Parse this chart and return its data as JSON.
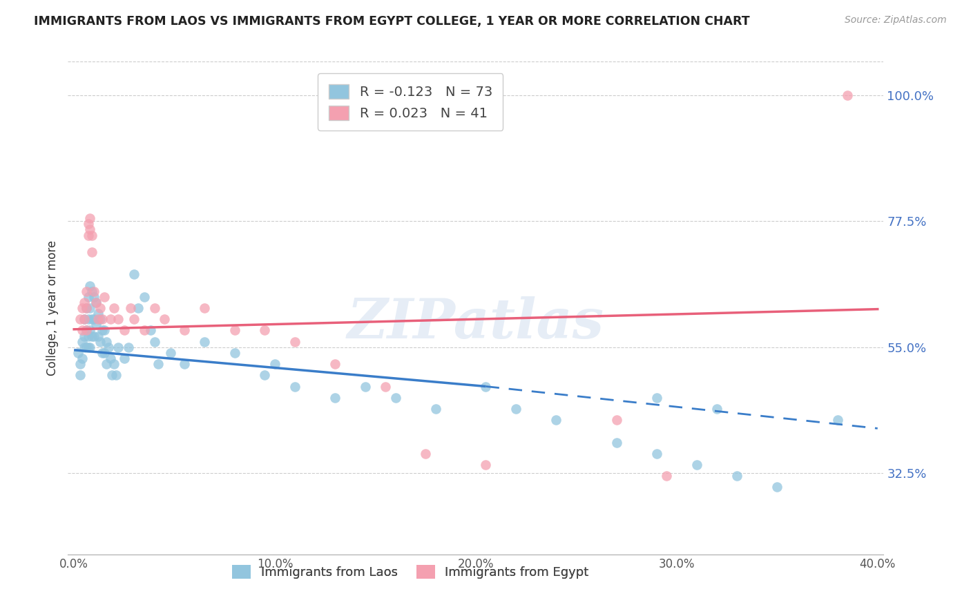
{
  "title": "IMMIGRANTS FROM LAOS VS IMMIGRANTS FROM EGYPT COLLEGE, 1 YEAR OR MORE CORRELATION CHART",
  "source": "Source: ZipAtlas.com",
  "xlabel_laos": "Immigrants from Laos",
  "xlabel_egypt": "Immigrants from Egypt",
  "ylabel": "College, 1 year or more",
  "xlim": [
    -0.003,
    0.403
  ],
  "ylim": [
    0.18,
    1.06
  ],
  "yticks": [
    0.325,
    0.55,
    0.775,
    1.0
  ],
  "ytick_labels": [
    "32.5%",
    "55.0%",
    "77.5%",
    "100.0%"
  ],
  "xticks": [
    0.0,
    0.1,
    0.2,
    0.3,
    0.4
  ],
  "xtick_labels": [
    "0.0%",
    "10.0%",
    "20.0%",
    "30.0%",
    "40.0%"
  ],
  "laos_R": -0.123,
  "laos_N": 73,
  "egypt_R": 0.023,
  "egypt_N": 41,
  "color_laos": "#92C5DE",
  "color_egypt": "#F4A0B0",
  "color_laos_line": "#3A7DC9",
  "color_egypt_line": "#E8607A",
  "color_axis_right": "#4472C4",
  "watermark": "ZIPatlas",
  "blue_line_x0": 0.0,
  "blue_line_y0": 0.545,
  "blue_line_x1": 0.205,
  "blue_line_y1": 0.48,
  "blue_line_x2": 0.4,
  "blue_line_y2": 0.405,
  "pink_line_x0": 0.0,
  "pink_line_y0": 0.582,
  "pink_line_x1": 0.4,
  "pink_line_y1": 0.618,
  "laos_x": [
    0.002,
    0.003,
    0.003,
    0.004,
    0.004,
    0.005,
    0.005,
    0.005,
    0.006,
    0.006,
    0.006,
    0.007,
    0.007,
    0.007,
    0.007,
    0.008,
    0.008,
    0.008,
    0.008,
    0.009,
    0.009,
    0.009,
    0.01,
    0.01,
    0.01,
    0.011,
    0.011,
    0.012,
    0.012,
    0.013,
    0.013,
    0.014,
    0.014,
    0.015,
    0.015,
    0.016,
    0.016,
    0.017,
    0.018,
    0.019,
    0.02,
    0.021,
    0.022,
    0.025,
    0.027,
    0.03,
    0.032,
    0.035,
    0.038,
    0.04,
    0.042,
    0.048,
    0.055,
    0.065,
    0.08,
    0.095,
    0.1,
    0.11,
    0.13,
    0.145,
    0.16,
    0.18,
    0.205,
    0.22,
    0.24,
    0.27,
    0.29,
    0.31,
    0.33,
    0.35,
    0.29,
    0.32,
    0.38
  ],
  "laos_y": [
    0.54,
    0.52,
    0.5,
    0.56,
    0.53,
    0.6,
    0.57,
    0.55,
    0.62,
    0.58,
    0.55,
    0.64,
    0.6,
    0.57,
    0.55,
    0.66,
    0.62,
    0.58,
    0.55,
    0.65,
    0.6,
    0.57,
    0.64,
    0.6,
    0.57,
    0.63,
    0.59,
    0.61,
    0.57,
    0.6,
    0.56,
    0.58,
    0.54,
    0.58,
    0.54,
    0.56,
    0.52,
    0.55,
    0.53,
    0.5,
    0.52,
    0.5,
    0.55,
    0.53,
    0.55,
    0.68,
    0.62,
    0.64,
    0.58,
    0.56,
    0.52,
    0.54,
    0.52,
    0.56,
    0.54,
    0.5,
    0.52,
    0.48,
    0.46,
    0.48,
    0.46,
    0.44,
    0.48,
    0.44,
    0.42,
    0.38,
    0.36,
    0.34,
    0.32,
    0.3,
    0.46,
    0.44,
    0.42
  ],
  "egypt_x": [
    0.003,
    0.004,
    0.004,
    0.005,
    0.005,
    0.006,
    0.006,
    0.006,
    0.007,
    0.007,
    0.008,
    0.008,
    0.009,
    0.009,
    0.01,
    0.011,
    0.012,
    0.013,
    0.014,
    0.015,
    0.018,
    0.02,
    0.022,
    0.025,
    0.028,
    0.03,
    0.035,
    0.04,
    0.045,
    0.055,
    0.065,
    0.08,
    0.095,
    0.11,
    0.13,
    0.155,
    0.175,
    0.205,
    0.27,
    0.295,
    0.385
  ],
  "egypt_y": [
    0.6,
    0.62,
    0.58,
    0.63,
    0.6,
    0.65,
    0.62,
    0.58,
    0.77,
    0.75,
    0.78,
    0.76,
    0.75,
    0.72,
    0.65,
    0.63,
    0.6,
    0.62,
    0.6,
    0.64,
    0.6,
    0.62,
    0.6,
    0.58,
    0.62,
    0.6,
    0.58,
    0.62,
    0.6,
    0.58,
    0.62,
    0.58,
    0.58,
    0.56,
    0.52,
    0.48,
    0.36,
    0.34,
    0.42,
    0.32,
    1.0
  ]
}
